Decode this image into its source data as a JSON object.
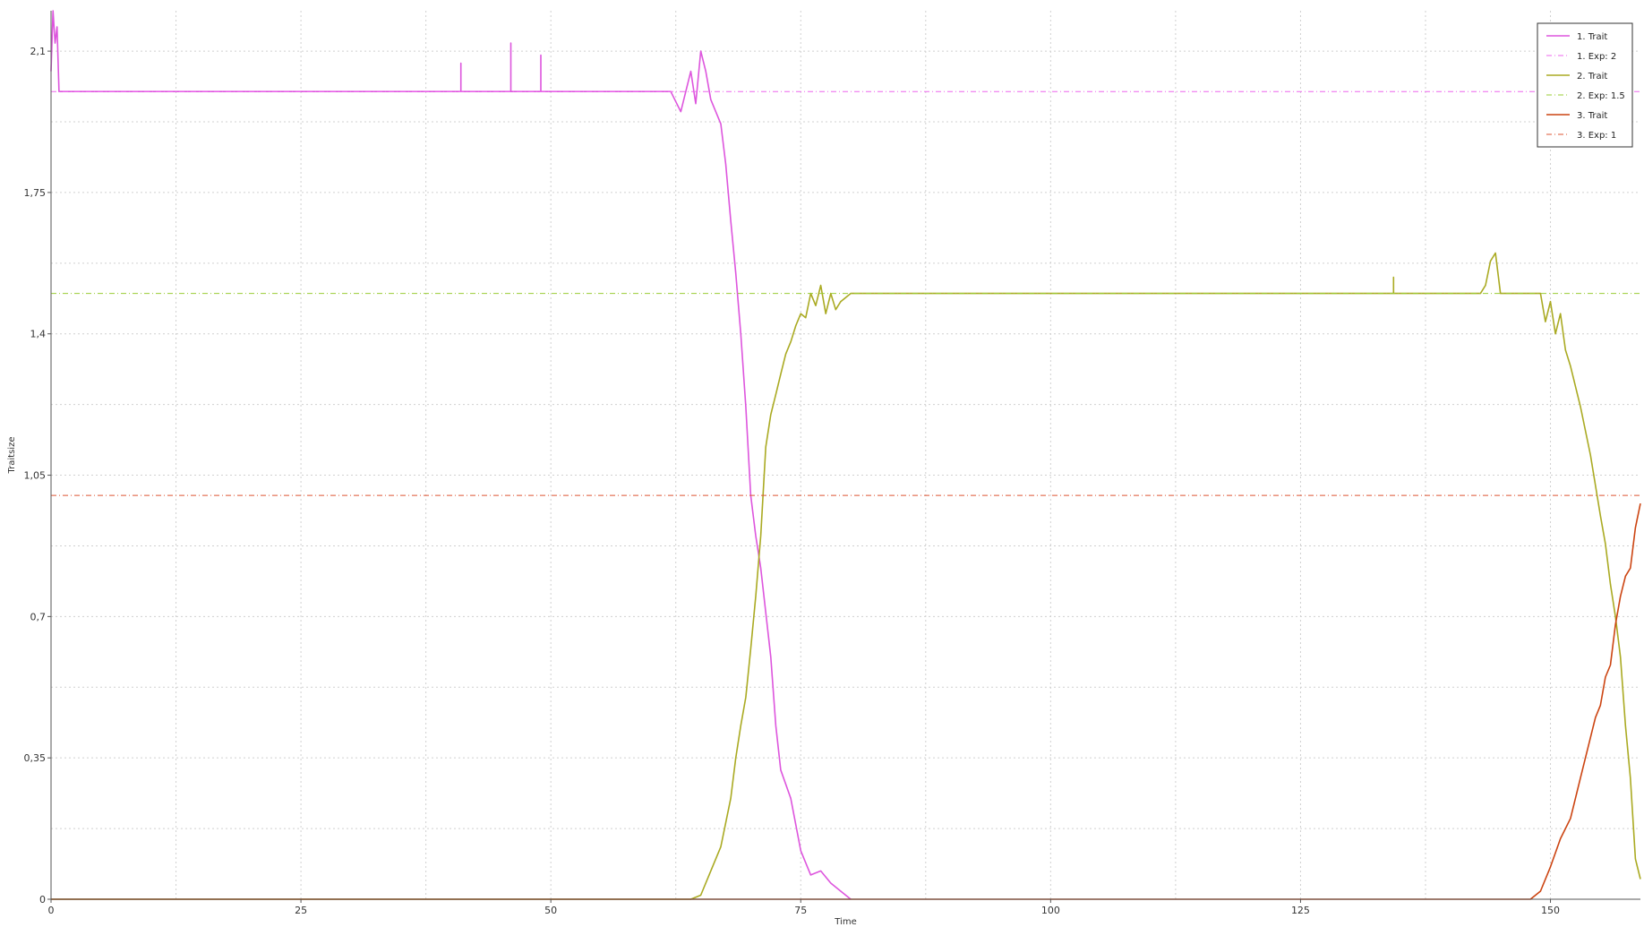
{
  "chart_data": {
    "type": "line",
    "xlabel": "Time",
    "ylabel": "Traitsize",
    "xlim": [
      0,
      159
    ],
    "ylim": [
      0,
      2.2
    ],
    "xticks": [
      0,
      25,
      50,
      75,
      100,
      125,
      150
    ],
    "xtick_labels": [
      "0",
      "25",
      "50",
      "75",
      "100",
      "125",
      "150"
    ],
    "yticks": [
      0,
      0.35,
      0.7,
      1.05,
      1.4,
      1.75,
      2.1
    ],
    "ytick_labels": [
      "0",
      "0,35",
      "0,7",
      "1,05",
      "1,4",
      "1,75",
      "2,1"
    ],
    "grid": true,
    "legend_placement": "top-right",
    "series": [
      {
        "name": "1. Trait",
        "color": "#dd55dd",
        "style": "solid",
        "points": [
          [
            0,
            2.05
          ],
          [
            0.2,
            2.2
          ],
          [
            0.4,
            2.12
          ],
          [
            0.6,
            2.16
          ],
          [
            0.8,
            2.0
          ],
          [
            1,
            2.0
          ],
          [
            10,
            2.0
          ],
          [
            20,
            2.0
          ],
          [
            30,
            2.0
          ],
          [
            40,
            2.0
          ],
          [
            41,
            2.0
          ],
          [
            41,
            2.07
          ],
          [
            41,
            2.0
          ],
          [
            46,
            2.0
          ],
          [
            46,
            2.12
          ],
          [
            46,
            2.0
          ],
          [
            49,
            2.0
          ],
          [
            49,
            2.09
          ],
          [
            49,
            2.0
          ],
          [
            62,
            2.0
          ],
          [
            63,
            1.95
          ],
          [
            64,
            2.05
          ],
          [
            64.5,
            1.97
          ],
          [
            65,
            2.1
          ],
          [
            65.5,
            2.05
          ],
          [
            66,
            1.98
          ],
          [
            67,
            1.92
          ],
          [
            67.5,
            1.82
          ],
          [
            68,
            1.68
          ],
          [
            68.5,
            1.55
          ],
          [
            69,
            1.4
          ],
          [
            69.5,
            1.22
          ],
          [
            70,
            1.0
          ],
          [
            70.5,
            0.9
          ],
          [
            71,
            0.82
          ],
          [
            72,
            0.6
          ],
          [
            72.5,
            0.43
          ],
          [
            73,
            0.32
          ],
          [
            74,
            0.25
          ],
          [
            75,
            0.12
          ],
          [
            76,
            0.06
          ],
          [
            77,
            0.07
          ],
          [
            78,
            0.04
          ],
          [
            79,
            0.02
          ],
          [
            80,
            0.0
          ]
        ]
      },
      {
        "name": "1. Exp: 2",
        "color": "#ee66ee",
        "style": "dashdot",
        "points": [
          [
            0,
            2.0
          ],
          [
            159,
            2.0
          ]
        ]
      },
      {
        "name": "2. Trait",
        "color": "#aaaa22",
        "style": "solid",
        "points": [
          [
            0,
            0.0
          ],
          [
            64,
            0.0
          ],
          [
            65,
            0.01
          ],
          [
            66,
            0.07
          ],
          [
            67,
            0.13
          ],
          [
            68,
            0.25
          ],
          [
            68.5,
            0.35
          ],
          [
            69,
            0.43
          ],
          [
            69.5,
            0.5
          ],
          [
            70,
            0.62
          ],
          [
            70.5,
            0.75
          ],
          [
            71,
            0.9
          ],
          [
            71.5,
            1.12
          ],
          [
            72,
            1.2
          ],
          [
            72.5,
            1.25
          ],
          [
            73,
            1.3
          ],
          [
            73.5,
            1.35
          ],
          [
            74,
            1.38
          ],
          [
            74.5,
            1.42
          ],
          [
            75,
            1.45
          ],
          [
            75.5,
            1.44
          ],
          [
            76,
            1.5
          ],
          [
            76.5,
            1.47
          ],
          [
            77,
            1.52
          ],
          [
            77.5,
            1.45
          ],
          [
            78,
            1.5
          ],
          [
            78.5,
            1.46
          ],
          [
            79,
            1.48
          ],
          [
            80,
            1.5
          ],
          [
            100,
            1.5
          ],
          [
            125,
            1.5
          ],
          [
            134.3,
            1.5
          ],
          [
            134.3,
            1.54
          ],
          [
            134.3,
            1.5
          ],
          [
            143,
            1.5
          ],
          [
            143.5,
            1.52
          ],
          [
            144,
            1.58
          ],
          [
            144.5,
            1.6
          ],
          [
            145,
            1.5
          ],
          [
            149,
            1.5
          ],
          [
            149.5,
            1.43
          ],
          [
            150,
            1.48
          ],
          [
            150.5,
            1.4
          ],
          [
            151,
            1.45
          ],
          [
            151.5,
            1.36
          ],
          [
            152,
            1.32
          ],
          [
            153,
            1.22
          ],
          [
            154,
            1.1
          ],
          [
            155,
            0.95
          ],
          [
            155.5,
            0.88
          ],
          [
            156,
            0.78
          ],
          [
            156.5,
            0.7
          ],
          [
            157,
            0.6
          ],
          [
            157.5,
            0.43
          ],
          [
            158,
            0.3
          ],
          [
            158.5,
            0.1
          ],
          [
            159,
            0.05
          ]
        ]
      },
      {
        "name": "2. Exp: 1.5",
        "color": "#99cc33",
        "style": "dashdot",
        "points": [
          [
            0,
            1.5
          ],
          [
            159,
            1.5
          ]
        ]
      },
      {
        "name": "3. Trait",
        "color": "#cc4411",
        "style": "solid",
        "points": [
          [
            0,
            0.0
          ],
          [
            148,
            0.0
          ],
          [
            149,
            0.02
          ],
          [
            150,
            0.08
          ],
          [
            151,
            0.15
          ],
          [
            152,
            0.2
          ],
          [
            153,
            0.3
          ],
          [
            154,
            0.4
          ],
          [
            154.5,
            0.45
          ],
          [
            155,
            0.48
          ],
          [
            155.5,
            0.55
          ],
          [
            156,
            0.58
          ],
          [
            156.5,
            0.68
          ],
          [
            157,
            0.75
          ],
          [
            157.5,
            0.8
          ],
          [
            158,
            0.82
          ],
          [
            158.5,
            0.92
          ],
          [
            159,
            0.98
          ]
        ]
      },
      {
        "name": "3. Exp: 1",
        "color": "#dd5533",
        "style": "dashdot",
        "points": [
          [
            0,
            1.0
          ],
          [
            159,
            1.0
          ]
        ]
      }
    ]
  }
}
